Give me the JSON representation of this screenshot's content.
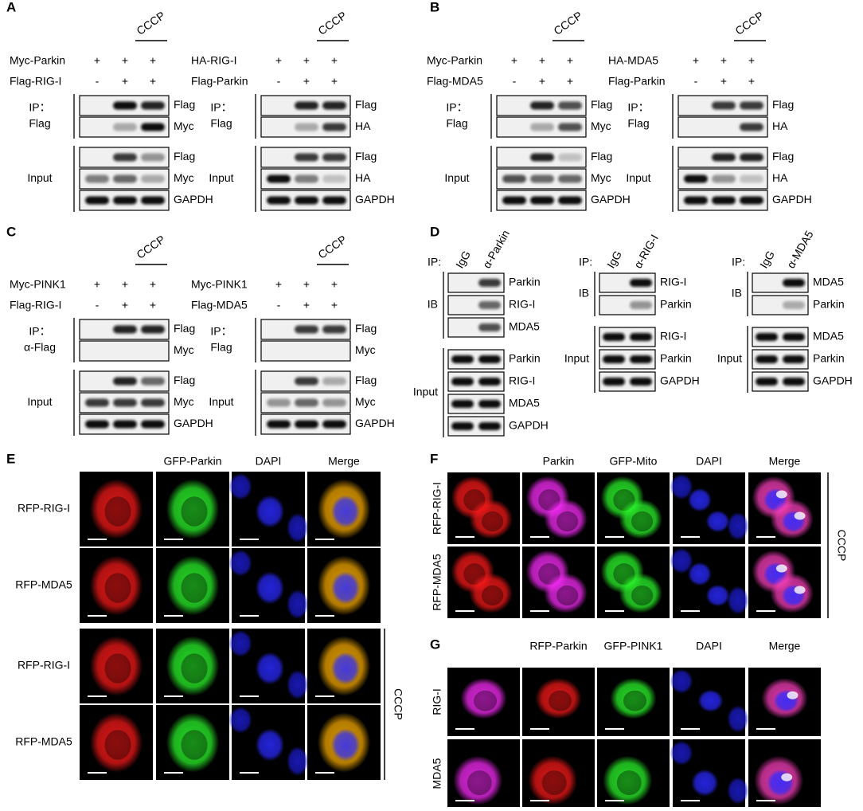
{
  "panels": [
    {
      "label": "A",
      "blots": [
        {
          "treatment": "CCCP",
          "conditions": [
            {
              "name": "Myc-Parkin",
              "marks": [
                "+",
                "+",
                "+"
              ]
            },
            {
              "name": "Flag-RIG-I",
              "marks": [
                "-",
                "+",
                "+"
              ]
            }
          ],
          "groups": [
            {
              "label": [
                "IP：",
                "Flag"
              ],
              "bands": [
                "Flag",
                "Myc"
              ]
            },
            {
              "label": [
                "Input"
              ],
              "bands": [
                "Flag",
                "Myc",
                "GAPDH"
              ]
            }
          ]
        },
        {
          "treatment": "CCCP",
          "conditions": [
            {
              "name": "HA-RIG-I",
              "marks": [
                "+",
                "+",
                "+"
              ]
            },
            {
              "name": "Flag-Parkin",
              "marks": [
                "-",
                "+",
                "+"
              ]
            }
          ],
          "groups": [
            {
              "label": [
                "IP：",
                "Flag"
              ],
              "bands": [
                "Flag",
                "HA"
              ]
            },
            {
              "label": [
                "Input"
              ],
              "bands": [
                "Flag",
                "HA",
                "GAPDH"
              ]
            }
          ]
        }
      ]
    },
    {
      "label": "B",
      "blots": [
        {
          "treatment": "CCCP",
          "conditions": [
            {
              "name": "Myc-Parkin",
              "marks": [
                "+",
                "+",
                "+"
              ]
            },
            {
              "name": "Flag-MDA5",
              "marks": [
                "-",
                "+",
                "+"
              ]
            }
          ],
          "groups": [
            {
              "label": [
                "IP：",
                "Flag"
              ],
              "bands": [
                "Flag",
                "Myc"
              ]
            },
            {
              "label": [
                "Input"
              ],
              "bands": [
                "Flag",
                "Myc",
                "GAPDH"
              ]
            }
          ]
        },
        {
          "treatment": "CCCP",
          "conditions": [
            {
              "name": "HA-MDA5",
              "marks": [
                "+",
                "+",
                "+"
              ]
            },
            {
              "name": "Flag-Parkin",
              "marks": [
                "-",
                "+",
                "+"
              ]
            }
          ],
          "groups": [
            {
              "label": [
                "IP：",
                "Flag"
              ],
              "bands": [
                "Flag",
                "HA"
              ]
            },
            {
              "label": [
                "Input"
              ],
              "bands": [
                "Flag",
                "HA",
                "GAPDH"
              ]
            }
          ]
        }
      ]
    },
    {
      "label": "C",
      "blots": [
        {
          "treatment": "CCCP",
          "conditions": [
            {
              "name": "Myc-PINK1",
              "marks": [
                "+",
                "+",
                "+"
              ]
            },
            {
              "name": "Flag-RIG-I",
              "marks": [
                "-",
                "+",
                "+"
              ]
            }
          ],
          "groups": [
            {
              "label": [
                "IP：",
                "α-Flag"
              ],
              "bands": [
                "Flag",
                "Myc"
              ]
            },
            {
              "label": [
                "Input"
              ],
              "bands": [
                "Flag",
                "Myc",
                "GAPDH"
              ]
            }
          ]
        },
        {
          "treatment": "CCCP",
          "conditions": [
            {
              "name": "Myc-PINK1",
              "marks": [
                "+",
                "+",
                "+"
              ]
            },
            {
              "name": "Flag-MDA5",
              "marks": [
                "-",
                "+",
                "+"
              ]
            }
          ],
          "groups": [
            {
              "label": [
                "IP：",
                "Flag"
              ],
              "bands": [
                "Flag",
                "Myc"
              ]
            },
            {
              "label": [
                "Input"
              ],
              "bands": [
                "Flag",
                "Myc",
                "GAPDH"
              ]
            }
          ]
        }
      ]
    },
    {
      "label": "D",
      "blots": [
        {
          "ip": "IP:",
          "lanes": [
            "IgG",
            "α-Parkin"
          ],
          "groups": [
            {
              "label": [
                "IB"
              ],
              "bands": [
                "Parkin",
                "RIG-I",
                "MDA5"
              ]
            },
            {
              "label": [
                "Input"
              ],
              "bands": [
                "Parkin",
                "RIG-I",
                "MDA5",
                "GAPDH"
              ]
            }
          ]
        },
        {
          "ip": "IP:",
          "lanes": [
            "IgG",
            "α-RIG-I"
          ],
          "groups": [
            {
              "label": [
                "IB"
              ],
              "bands": [
                "RIG-I",
                "Parkin"
              ]
            },
            {
              "label": [
                "Input"
              ],
              "bands": [
                "RIG-I",
                "Parkin",
                "GAPDH"
              ]
            }
          ]
        },
        {
          "ip": "IP:",
          "lanes": [
            "IgG",
            "α-MDA5"
          ],
          "groups": [
            {
              "label": [
                "IB"
              ],
              "bands": [
                "MDA5",
                "Parkin"
              ]
            },
            {
              "label": [
                "Input"
              ],
              "bands": [
                "MDA5",
                "Parkin",
                "GAPDH"
              ]
            }
          ]
        }
      ]
    },
    {
      "label": "E",
      "columns": [
        null,
        "GFP-Parkin",
        "DAPI",
        "Merge"
      ],
      "rows": [
        "RFP-RIG-I",
        "RFP-MDA5",
        "RFP-RIG-I",
        "RFP-MDA5"
      ],
      "treatment": "CCCP"
    },
    {
      "label": "F",
      "columns": [
        null,
        "Parkin",
        "GFP-Mito",
        "DAPI",
        "Merge"
      ],
      "rows": [
        "RFP-RIG-I",
        "RFP-MDA5"
      ],
      "treatment": "CCCP"
    },
    {
      "label": "G",
      "columns": [
        null,
        "RFP-Parkin",
        "GFP-PINK1",
        "DAPI",
        "Merge"
      ],
      "rows": [
        "RIG-I",
        "MDA5"
      ]
    }
  ]
}
